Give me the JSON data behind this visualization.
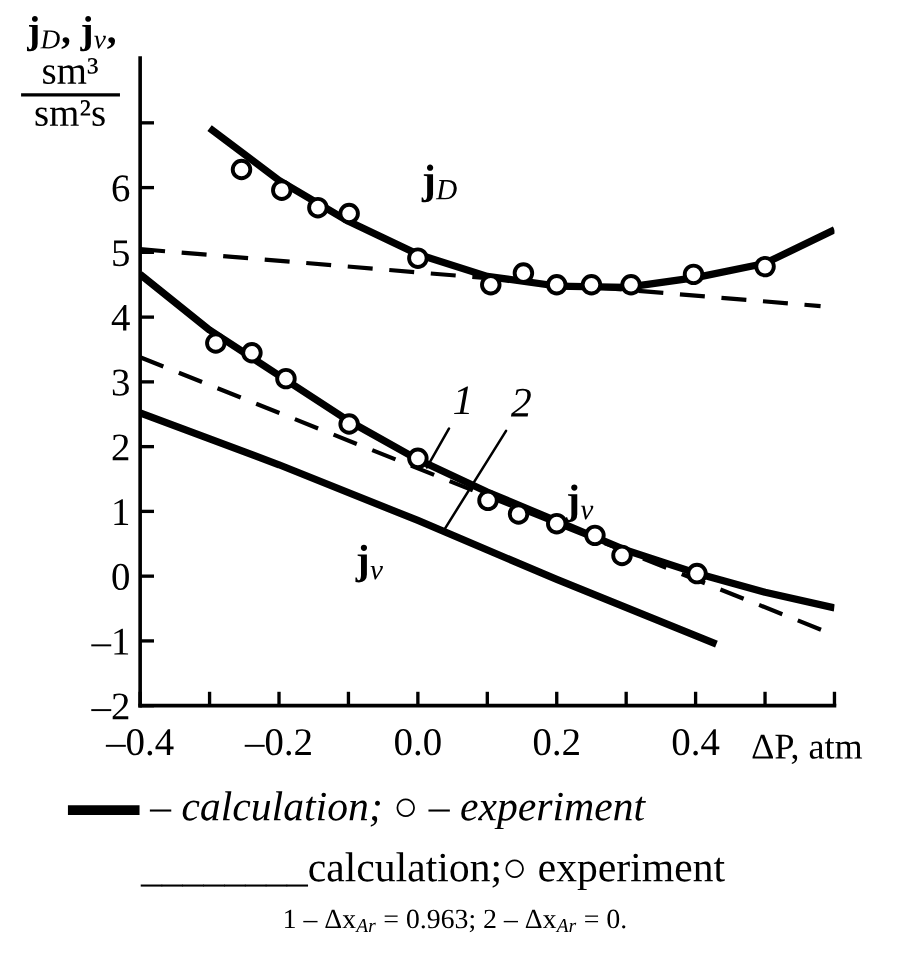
{
  "chart_data": {
    "type": "line",
    "ylabel": "j$_{D}$, j$_{v}$,\nsm³\nsm²s",
    "xlabel": "ΔP, atm",
    "xlim": [
      -0.4,
      0.6
    ],
    "ylim": [
      -2,
      8
    ],
    "xticks": [
      {
        "value": -0.4,
        "label": "–0.4"
      },
      {
        "value": -0.3,
        "label": null
      },
      {
        "value": -0.2,
        "label": "–0.2"
      },
      {
        "value": -0.1,
        "label": null
      },
      {
        "value": 0.0,
        "label": "0.0"
      },
      {
        "value": 0.1,
        "label": null
      },
      {
        "value": 0.2,
        "label": "0.2"
      },
      {
        "value": 0.3,
        "label": null
      },
      {
        "value": 0.4,
        "label": "0.4"
      },
      {
        "value": 0.5,
        "label": null
      },
      {
        "value": 0.6,
        "label": null
      }
    ],
    "yticks": [
      {
        "value": -2,
        "label": "–2"
      },
      {
        "value": -1,
        "label": "–1"
      },
      0,
      1,
      2,
      3,
      4,
      5,
      6,
      {
        "value": 7,
        "label": null
      }
    ],
    "grid": false,
    "series": [
      {
        "color": "#000000",
        "line_style": "solid",
        "x": [
          -0.3,
          -0.2,
          -0.1,
          0.0,
          0.1,
          0.2,
          0.3,
          0.4,
          0.5,
          0.6
        ],
        "values": [
          6.92,
          6.11,
          5.48,
          4.97,
          4.63,
          4.48,
          4.46,
          4.61,
          4.83,
          5.35
        ]
      },
      {
        "type": "scatter",
        "color": "#000000",
        "marker": "circle",
        "x": [
          -0.254,
          -0.196,
          -0.144,
          -0.099,
          0.0,
          0.105,
          0.152,
          0.2,
          0.25,
          0.307,
          0.397,
          0.5
        ],
        "values": [
          6.28,
          5.96,
          5.69,
          5.6,
          4.91,
          4.5,
          4.68,
          4.5,
          4.5,
          4.5,
          4.66,
          4.78
        ]
      },
      {
        "color": "#000000",
        "line_style": "dashed",
        "x": [
          -0.4,
          0.58
        ],
        "values": [
          5.05,
          4.17
        ]
      },
      {
        "color": "#000000",
        "line_style": "solid",
        "x": [
          -0.4,
          -0.3,
          -0.2,
          -0.1,
          0.0,
          0.1,
          0.2,
          0.3,
          0.4,
          0.5,
          0.6
        ],
        "values": [
          4.66,
          3.8,
          3.1,
          2.4,
          1.8,
          1.3,
          0.85,
          0.4,
          0.05,
          -0.25,
          -0.49
        ]
      },
      {
        "type": "scatter",
        "color": "#000000",
        "marker": "circle",
        "x": [
          -0.291,
          -0.239,
          -0.19,
          -0.099,
          0.0,
          0.101,
          0.145,
          0.2,
          0.255,
          0.294,
          0.402
        ],
        "values": [
          3.6,
          3.45,
          3.05,
          2.35,
          1.82,
          1.17,
          0.96,
          0.81,
          0.63,
          0.32,
          0.04
        ]
      },
      {
        "color": "#000000",
        "line_style": "dashed",
        "x": [
          -0.4,
          0.6
        ],
        "values": [
          3.38,
          -0.91
        ]
      },
      {
        "color": "#000000",
        "line_style": "solid",
        "x": [
          -0.4,
          -0.2,
          0.0,
          0.2,
          0.43
        ],
        "values": [
          2.52,
          1.72,
          0.86,
          -0.05,
          -1.05
        ]
      }
    ],
    "annotations": [
      "j$_{D}$",
      "j$_{v}$",
      "j$_{v}$",
      {
        "text": "1",
        "x": 0.013,
        "y": 1.68
      },
      {
        "text": "2",
        "x": 0.037,
        "y": 0.7
      },
      "– calculation; ○ – experiment",
      "________calculation;○ experiment",
      "1 – Δx$_{Ar}$ = 0.963; 2 – Δx$_{Ar}$ = 0."
    ]
  }
}
